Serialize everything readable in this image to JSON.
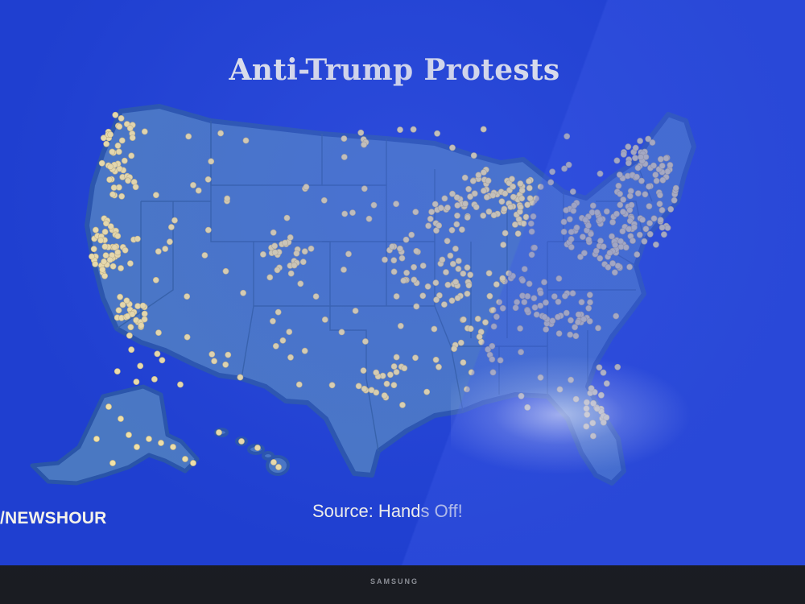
{
  "title": "Anti-Trump Protests",
  "source": "Source: Hands Off!",
  "network_logo": "/NEWSHOUR",
  "tv_brand": "SAMSUNG",
  "colors": {
    "screen_background": "#1f3fd0",
    "land_fill": "#4a78c2",
    "land_outline": "#2a55a8",
    "state_border": "#34609f",
    "protest_marker": "#f3e2a6"
  },
  "legend": {
    "marker_meaning": "protest location",
    "marker_icon": "filled-circle"
  },
  "regions_shown": [
    "contiguous-us",
    "alaska",
    "hawaii"
  ]
}
